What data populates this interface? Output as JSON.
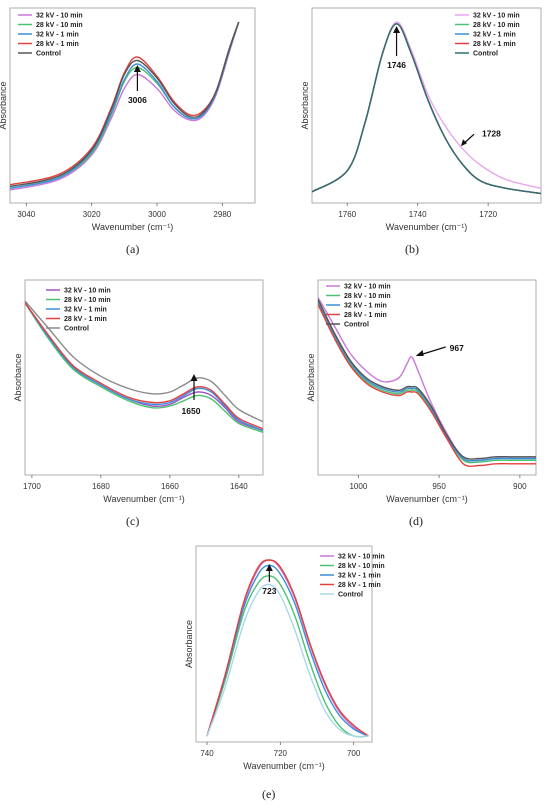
{
  "figure": {
    "legend_entries": [
      "32 kV - 10 min",
      "28 kV - 10 min",
      "32 kV - 1 min",
      "28 kV - 1 min",
      "Control"
    ]
  },
  "chart_data": [
    {
      "panel": "(a)",
      "type": "line",
      "xlabel": "Wavenumber (cm⁻¹)",
      "ylabel": "Absorbance",
      "xlim": [
        3045,
        2970
      ],
      "ylim": [
        0,
        1
      ],
      "xticks": [
        3040,
        3020,
        3000,
        2980
      ],
      "legend_position": "top-left",
      "annotation": {
        "label": "3006",
        "x": 3006
      },
      "series": [
        {
          "name": "32 kV - 10 min",
          "color": "#c977d9",
          "x": [
            3045,
            3030,
            3020,
            3014,
            3010,
            3006,
            3000,
            2995,
            2990,
            2986,
            2982,
            2978,
            2975
          ],
          "y": [
            0.04,
            0.1,
            0.24,
            0.45,
            0.62,
            0.7,
            0.62,
            0.5,
            0.44,
            0.46,
            0.58,
            0.82,
            1.0
          ]
        },
        {
          "name": "28 kV - 10 min",
          "color": "#4cc270",
          "x": [
            3045,
            3030,
            3020,
            3014,
            3010,
            3006,
            3000,
            2995,
            2990,
            2986,
            2982,
            2978,
            2975
          ],
          "y": [
            0.05,
            0.11,
            0.25,
            0.47,
            0.66,
            0.74,
            0.65,
            0.52,
            0.45,
            0.47,
            0.59,
            0.83,
            1.0
          ]
        },
        {
          "name": "32 kV - 1 min",
          "color": "#3b8fd9",
          "x": [
            3045,
            3030,
            3020,
            3014,
            3010,
            3006,
            3000,
            2995,
            2990,
            2986,
            2982,
            2978,
            2975
          ],
          "y": [
            0.05,
            0.11,
            0.26,
            0.48,
            0.67,
            0.76,
            0.66,
            0.52,
            0.45,
            0.47,
            0.59,
            0.83,
            1.0
          ]
        },
        {
          "name": "28 kV - 1 min",
          "color": "#e2413f",
          "x": [
            3045,
            3030,
            3020,
            3014,
            3010,
            3006,
            3000,
            2995,
            2990,
            2986,
            2982,
            2978,
            2975
          ],
          "y": [
            0.07,
            0.13,
            0.28,
            0.51,
            0.71,
            0.8,
            0.69,
            0.55,
            0.47,
            0.49,
            0.6,
            0.84,
            1.0
          ]
        },
        {
          "name": "Control",
          "color": "#555555",
          "x": [
            3045,
            3030,
            3020,
            3014,
            3010,
            3006,
            3000,
            2995,
            2990,
            2986,
            2982,
            2978,
            2975
          ],
          "y": [
            0.06,
            0.12,
            0.27,
            0.5,
            0.7,
            0.78,
            0.68,
            0.54,
            0.46,
            0.48,
            0.6,
            0.84,
            1.0
          ]
        }
      ]
    },
    {
      "panel": "(b)",
      "type": "line",
      "xlabel": "Wavenumber (cm⁻¹)",
      "ylabel": "Absorbance",
      "xlim": [
        1770,
        1705
      ],
      "ylim": [
        0,
        1
      ],
      "xticks": [
        1760,
        1740,
        1720
      ],
      "legend_position": "top-right",
      "annotations": [
        {
          "label": "1746",
          "x": 1746
        },
        {
          "label": "1728",
          "x": 1728
        }
      ],
      "series": [
        {
          "name": "32 kV - 10 min",
          "color": "#e7a6ef",
          "x": [
            1770,
            1760,
            1755,
            1750,
            1746,
            1742,
            1737,
            1732,
            1727,
            1722,
            1715,
            1705
          ],
          "y": [
            0.03,
            0.15,
            0.42,
            0.82,
            1.0,
            0.85,
            0.58,
            0.4,
            0.27,
            0.18,
            0.1,
            0.05
          ]
        },
        {
          "name": "28 kV - 10 min",
          "color": "#4cc270",
          "x": [
            1770,
            1760,
            1755,
            1750,
            1746,
            1742,
            1737,
            1732,
            1727,
            1722,
            1715,
            1705
          ],
          "y": [
            0.03,
            0.15,
            0.42,
            0.82,
            0.99,
            0.83,
            0.55,
            0.33,
            0.18,
            0.09,
            0.05,
            0.02
          ]
        },
        {
          "name": "32 kV - 1 min",
          "color": "#3b8fd9",
          "x": [
            1770,
            1760,
            1755,
            1750,
            1746,
            1742,
            1737,
            1732,
            1727,
            1722,
            1715,
            1705
          ],
          "y": [
            0.03,
            0.15,
            0.42,
            0.82,
            0.99,
            0.83,
            0.55,
            0.33,
            0.18,
            0.09,
            0.05,
            0.02
          ]
        },
        {
          "name": "28 kV - 1 min",
          "color": "#e2413f",
          "x": [
            1770,
            1760,
            1755,
            1750,
            1746,
            1742,
            1737,
            1732,
            1727,
            1722,
            1715,
            1705
          ],
          "y": [
            0.03,
            0.15,
            0.42,
            0.82,
            0.99,
            0.83,
            0.55,
            0.33,
            0.18,
            0.09,
            0.05,
            0.02
          ]
        },
        {
          "name": "Control",
          "color": "#2f6f73",
          "x": [
            1770,
            1760,
            1755,
            1750,
            1746,
            1742,
            1737,
            1732,
            1727,
            1722,
            1715,
            1705
          ],
          "y": [
            0.03,
            0.15,
            0.42,
            0.82,
            0.99,
            0.83,
            0.55,
            0.33,
            0.18,
            0.09,
            0.05,
            0.02
          ]
        }
      ]
    },
    {
      "panel": "(c)",
      "type": "line",
      "xlabel": "Wavenumber (cm⁻¹)",
      "ylabel": "Absorbance",
      "xlim": [
        1702,
        1633
      ],
      "ylim": [
        0,
        1
      ],
      "xticks": [
        1700,
        1680,
        1660,
        1640
      ],
      "legend_position": "top-left",
      "annotation": {
        "label": "1650",
        "x": 1653
      },
      "series": [
        {
          "name": "32 kV - 10 min",
          "color": "#9a55c8",
          "x": [
            1702,
            1695,
            1688,
            1680,
            1672,
            1665,
            1660,
            1656,
            1652,
            1648,
            1644,
            1640,
            1633
          ],
          "y": [
            0.95,
            0.75,
            0.58,
            0.48,
            0.4,
            0.36,
            0.37,
            0.41,
            0.44,
            0.42,
            0.35,
            0.27,
            0.22
          ]
        },
        {
          "name": "28 kV - 10 min",
          "color": "#4cc270",
          "x": [
            1702,
            1695,
            1688,
            1680,
            1672,
            1665,
            1660,
            1656,
            1652,
            1648,
            1644,
            1640,
            1633
          ],
          "y": [
            0.95,
            0.74,
            0.57,
            0.47,
            0.39,
            0.35,
            0.36,
            0.39,
            0.42,
            0.4,
            0.33,
            0.26,
            0.21
          ]
        },
        {
          "name": "32 kV - 1 min",
          "color": "#3b8fd9",
          "x": [
            1702,
            1695,
            1688,
            1680,
            1672,
            1665,
            1660,
            1656,
            1652,
            1648,
            1644,
            1640,
            1633
          ],
          "y": [
            0.95,
            0.75,
            0.58,
            0.48,
            0.4,
            0.37,
            0.38,
            0.42,
            0.46,
            0.44,
            0.36,
            0.28,
            0.22
          ]
        },
        {
          "name": "28 kV - 1 min",
          "color": "#e2413f",
          "x": [
            1702,
            1695,
            1688,
            1680,
            1672,
            1665,
            1660,
            1656,
            1652,
            1648,
            1644,
            1640,
            1633
          ],
          "y": [
            0.95,
            0.76,
            0.59,
            0.49,
            0.41,
            0.38,
            0.39,
            0.43,
            0.47,
            0.45,
            0.37,
            0.29,
            0.23
          ]
        },
        {
          "name": "Control",
          "color": "#8a8a8a",
          "x": [
            1702,
            1695,
            1688,
            1680,
            1672,
            1665,
            1660,
            1656,
            1652,
            1648,
            1644,
            1640,
            1633
          ],
          "y": [
            0.96,
            0.8,
            0.64,
            0.53,
            0.46,
            0.43,
            0.44,
            0.48,
            0.52,
            0.5,
            0.42,
            0.34,
            0.27
          ]
        }
      ]
    },
    {
      "panel": "(d)",
      "type": "line",
      "xlabel": "Wavenumber (cm⁻¹)",
      "ylabel": "Absorbance",
      "xlim": [
        1025,
        890
      ],
      "ylim": [
        0,
        1
      ],
      "xticks": [
        1000,
        950,
        900
      ],
      "legend_position": "top-right",
      "annotation": {
        "label": "967",
        "x": 967
      },
      "series": [
        {
          "name": "32 kV - 10 min",
          "color": "#c977d9",
          "x": [
            1025,
            1015,
            1005,
            995,
            985,
            975,
            970,
            967,
            963,
            955,
            945,
            935,
            925,
            915,
            905,
            890
          ],
          "y": [
            0.98,
            0.82,
            0.66,
            0.56,
            0.5,
            0.52,
            0.6,
            0.64,
            0.56,
            0.38,
            0.2,
            0.06,
            0.05,
            0.06,
            0.06,
            0.06
          ]
        },
        {
          "name": "28 kV - 10 min",
          "color": "#4cc270",
          "x": [
            1025,
            1015,
            1005,
            995,
            985,
            975,
            970,
            967,
            963,
            955,
            945,
            935,
            925,
            915,
            905,
            890
          ],
          "y": [
            0.95,
            0.76,
            0.6,
            0.5,
            0.45,
            0.43,
            0.45,
            0.45,
            0.44,
            0.34,
            0.18,
            0.05,
            0.04,
            0.05,
            0.05,
            0.05
          ]
        },
        {
          "name": "32 kV - 1 min",
          "color": "#3b8fd9",
          "x": [
            1025,
            1015,
            1005,
            995,
            985,
            975,
            970,
            967,
            963,
            955,
            945,
            935,
            925,
            915,
            905,
            890
          ],
          "y": [
            0.96,
            0.77,
            0.61,
            0.51,
            0.46,
            0.44,
            0.46,
            0.46,
            0.45,
            0.35,
            0.18,
            0.06,
            0.05,
            0.06,
            0.06,
            0.06
          ]
        },
        {
          "name": "28 kV - 1 min",
          "color": "#e2413f",
          "x": [
            1025,
            1015,
            1005,
            995,
            985,
            975,
            970,
            967,
            963,
            955,
            945,
            935,
            925,
            915,
            905,
            890
          ],
          "y": [
            0.94,
            0.75,
            0.59,
            0.49,
            0.44,
            0.42,
            0.44,
            0.44,
            0.43,
            0.33,
            0.17,
            0.03,
            0.02,
            0.03,
            0.03,
            0.03
          ]
        },
        {
          "name": "Control",
          "color": "#555555",
          "x": [
            1025,
            1015,
            1005,
            995,
            985,
            975,
            970,
            967,
            963,
            955,
            945,
            935,
            925,
            915,
            905,
            890
          ],
          "y": [
            0.97,
            0.78,
            0.62,
            0.52,
            0.47,
            0.45,
            0.47,
            0.47,
            0.46,
            0.36,
            0.19,
            0.07,
            0.06,
            0.07,
            0.07,
            0.07
          ]
        }
      ]
    },
    {
      "panel": "(e)",
      "type": "line",
      "xlabel": "Wavenumber (cm⁻¹)",
      "ylabel": "Absorbance",
      "xlim": [
        743,
        695
      ],
      "ylim": [
        0,
        1
      ],
      "xticks": [
        740,
        720,
        700
      ],
      "legend_position": "top-right",
      "annotation": {
        "label": "723",
        "x": 723
      },
      "series": [
        {
          "name": "32 kV - 10 min",
          "color": "#c977d9",
          "x": [
            740,
            735,
            730,
            726,
            723,
            720,
            716,
            712,
            708,
            704,
            700,
            696
          ],
          "y": [
            0.0,
            0.35,
            0.75,
            0.95,
            1.0,
            0.95,
            0.78,
            0.52,
            0.3,
            0.14,
            0.05,
            0.0
          ]
        },
        {
          "name": "28 kV - 10 min",
          "color": "#4cc270",
          "x": [
            740,
            735,
            730,
            726,
            723,
            720,
            716,
            712,
            708,
            704,
            700,
            696
          ],
          "y": [
            0.0,
            0.32,
            0.7,
            0.87,
            0.91,
            0.86,
            0.68,
            0.42,
            0.2,
            0.06,
            0.0,
            0.0
          ]
        },
        {
          "name": "32 kV - 1 min",
          "color": "#3b8fd9",
          "x": [
            740,
            735,
            730,
            726,
            723,
            720,
            716,
            712,
            708,
            704,
            700,
            696
          ],
          "y": [
            0.0,
            0.34,
            0.73,
            0.92,
            0.97,
            0.92,
            0.75,
            0.49,
            0.27,
            0.12,
            0.04,
            0.0
          ]
        },
        {
          "name": "28 kV - 1 min",
          "color": "#e2413f",
          "x": [
            740,
            735,
            730,
            726,
            723,
            720,
            716,
            712,
            708,
            704,
            700,
            696
          ],
          "y": [
            0.0,
            0.35,
            0.76,
            0.96,
            1.0,
            0.96,
            0.79,
            0.53,
            0.31,
            0.15,
            0.06,
            0.0
          ]
        },
        {
          "name": "Control",
          "color": "#a8d8ea",
          "x": [
            740,
            735,
            730,
            726,
            723,
            720,
            716,
            712,
            708,
            704,
            700,
            696
          ],
          "y": [
            0.0,
            0.28,
            0.64,
            0.82,
            0.86,
            0.8,
            0.6,
            0.35,
            0.15,
            0.04,
            0.0,
            0.0
          ]
        }
      ]
    }
  ]
}
